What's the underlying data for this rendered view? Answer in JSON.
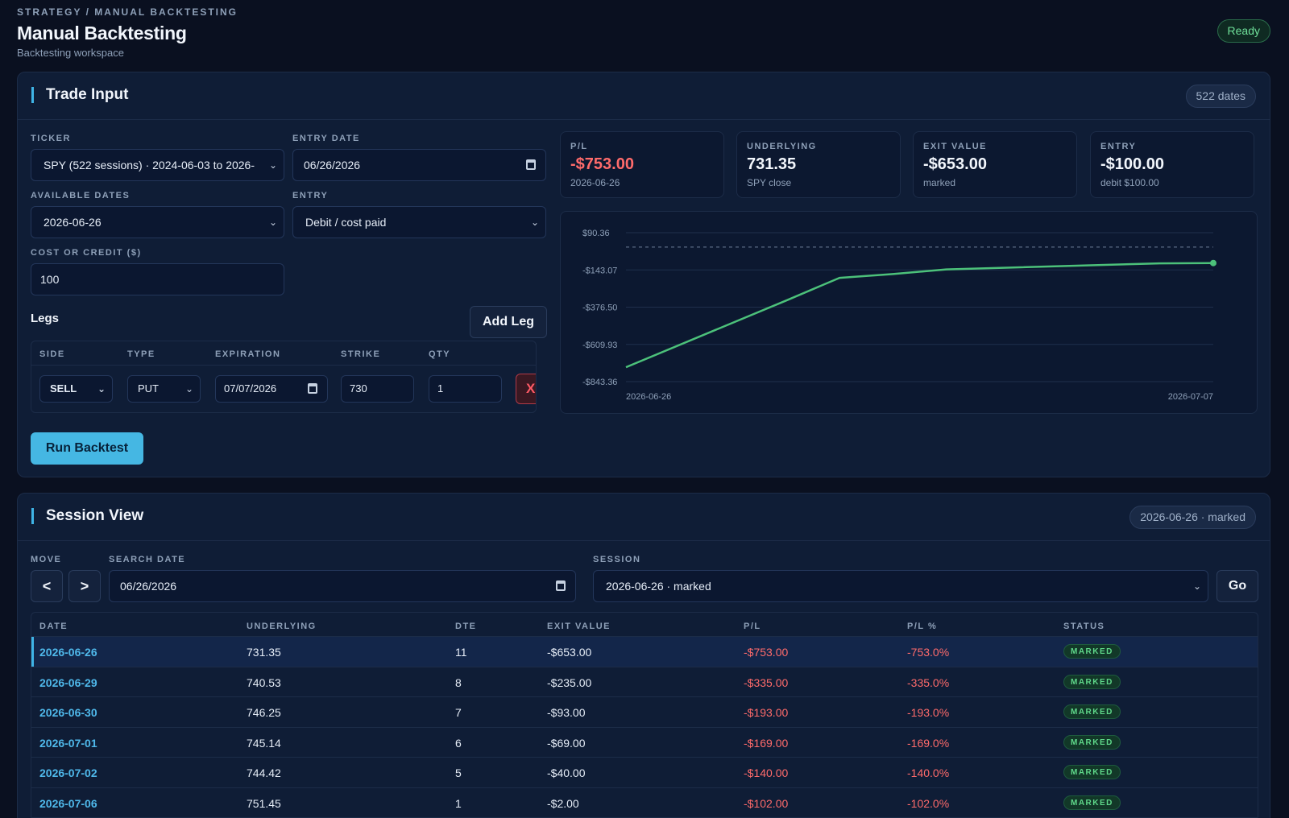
{
  "header": {
    "breadcrumb": "STRATEGY / MANUAL BACKTESTING",
    "title": "Manual Backtesting",
    "subtitle": "Backtesting workspace",
    "status": "Ready"
  },
  "trade_input": {
    "title": "Trade Input",
    "pill": "522 dates",
    "ticker_label": "TICKER",
    "ticker_value": "SPY (522 sessions) · 2024-06-03 to 2026-",
    "entry_date_label": "ENTRY DATE",
    "entry_date_value": "06/26/2026",
    "available_dates_label": "AVAILABLE DATES",
    "available_dates_value": "2026-06-26",
    "entry_label": "ENTRY",
    "entry_value": "Debit / cost paid",
    "cost_label": "COST OR CREDIT ($)",
    "cost_value": "100",
    "legs_label": "Legs",
    "add_leg": "Add Leg",
    "legs_headers": [
      "SIDE",
      "TYPE",
      "EXPIRATION",
      "STRIKE",
      "QTY"
    ],
    "leg": {
      "side": "SELL",
      "type": "PUT",
      "expiration": "07/07/2026",
      "strike": "730",
      "qty": "1",
      "delete": "X"
    },
    "run_button": "Run Backtest"
  },
  "kpis": [
    {
      "label": "P/L",
      "value": "-$753.00",
      "sub": "2026-06-26",
      "color": "#ff6b6b"
    },
    {
      "label": "UNDERLYING",
      "value": "731.35",
      "sub": "SPY close",
      "color": "#f2f6fc"
    },
    {
      "label": "EXIT VALUE",
      "value": "-$653.00",
      "sub": "marked",
      "color": "#f2f6fc"
    },
    {
      "label": "ENTRY",
      "value": "-$100.00",
      "sub": "debit $100.00",
      "color": "#f2f6fc"
    }
  ],
  "chart_data": {
    "type": "line",
    "y_ticks": [
      "$90.36",
      "-$143.07",
      "-$376.50",
      "-$609.93",
      "-$843.36"
    ],
    "ylim": [
      -843.36,
      90.36
    ],
    "x_tick_labels": [
      "2026-06-26",
      "2026-07-07"
    ],
    "baseline": 0,
    "series": [
      {
        "values": [
          {
            "x": "2026-06-26",
            "y": -753
          },
          {
            "x": "2026-06-29",
            "y": -335
          },
          {
            "x": "2026-06-30",
            "y": -193
          },
          {
            "x": "2026-07-01",
            "y": -169
          },
          {
            "x": "2026-07-02",
            "y": -140
          },
          {
            "x": "2026-07-06",
            "y": -102
          },
          {
            "x": "2026-07-07",
            "y": -100
          }
        ]
      }
    ],
    "line_color": "#4cc17a"
  },
  "session_view": {
    "title": "Session View",
    "pill": "2026-06-26 · marked",
    "move_label": "MOVE",
    "prev": "<",
    "next": ">",
    "search_label": "SEARCH DATE",
    "search_value": "06/26/2026",
    "session_label": "SESSION",
    "session_value": "2026-06-26 · marked",
    "go": "Go",
    "columns": [
      "DATE",
      "UNDERLYING",
      "DTE",
      "EXIT VALUE",
      "P/L",
      "P/L %",
      "STATUS"
    ],
    "rows": [
      {
        "date": "2026-06-26",
        "underlying": "731.35",
        "dte": "11",
        "exit": "-$653.00",
        "pl": "-$753.00",
        "plpct": "-753.0%",
        "status": "MARKED"
      },
      {
        "date": "2026-06-29",
        "underlying": "740.53",
        "dte": "8",
        "exit": "-$235.00",
        "pl": "-$335.00",
        "plpct": "-335.0%",
        "status": "MARKED"
      },
      {
        "date": "2026-06-30",
        "underlying": "746.25",
        "dte": "7",
        "exit": "-$93.00",
        "pl": "-$193.00",
        "plpct": "-193.0%",
        "status": "MARKED"
      },
      {
        "date": "2026-07-01",
        "underlying": "745.14",
        "dte": "6",
        "exit": "-$69.00",
        "pl": "-$169.00",
        "plpct": "-169.0%",
        "status": "MARKED"
      },
      {
        "date": "2026-07-02",
        "underlying": "744.42",
        "dte": "5",
        "exit": "-$40.00",
        "pl": "-$140.00",
        "plpct": "-140.0%",
        "status": "MARKED"
      },
      {
        "date": "2026-07-06",
        "underlying": "751.45",
        "dte": "1",
        "exit": "-$2.00",
        "pl": "-$102.00",
        "plpct": "-102.0%",
        "status": "MARKED"
      }
    ]
  }
}
